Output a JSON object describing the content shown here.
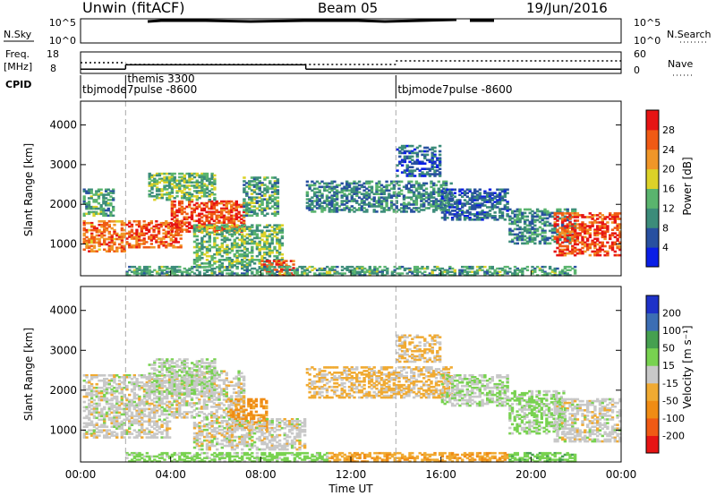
{
  "header": {
    "station": "Unwin  (fitACF)",
    "beam": "Beam 05",
    "date": "19/Jun/2016"
  },
  "top_panels": {
    "nsky_label": "N.Sky",
    "nsearch_label": "N.Search",
    "noise_ticks_left": [
      "10^5",
      "10^0"
    ],
    "noise_ticks_right": [
      "10^5",
      "10^0"
    ],
    "freq_label": [
      "Freq.",
      "[MHz]"
    ],
    "freq_ticks": [
      "18",
      "8"
    ],
    "nave_label": "Nave",
    "nave_ticks": [
      "60",
      "0"
    ],
    "cpid_label": "CPID",
    "cpid_segments": [
      {
        "start_hour": 0.0,
        "name": "tbjmode7pulse  -8600"
      },
      {
        "start_hour": 2.0,
        "name": "themis 3300"
      },
      {
        "start_hour": 14.0,
        "name": "tbjmode7pulse  -8600"
      }
    ],
    "freq_line_mhz": [
      {
        "from_hour": 0.0,
        "to_hour": 2.0,
        "value": 10
      },
      {
        "from_hour": 2.0,
        "to_hour": 10.0,
        "value": 12
      },
      {
        "from_hour": 10.0,
        "to_hour": 24.0,
        "value": 10
      }
    ],
    "nave_line": [
      {
        "from_hour": 0.0,
        "to_hour": 2.0,
        "value": 30
      },
      {
        "from_hour": 2.0,
        "to_hour": 14.0,
        "value": 25
      },
      {
        "from_hour": 14.0,
        "to_hour": 24.0,
        "value": 35
      }
    ]
  },
  "x_axis": {
    "label": "Time UT",
    "ticks": [
      "00:00",
      "04:00",
      "08:00",
      "12:00",
      "16:00",
      "20:00",
      "00:00"
    ]
  },
  "colors": {
    "power": [
      "#0a1ee6",
      "#2850a0",
      "#3c8c7a",
      "#5ab46e",
      "#dcd228",
      "#f09628",
      "#f05a14",
      "#e61414"
    ],
    "velocity": [
      "#e61414",
      "#f05a14",
      "#f08c14",
      "#f0aa32",
      "#c8c8c8",
      "#78d250",
      "#46a050",
      "#3c6eb4",
      "#1e32c8"
    ],
    "marker_line": "#aaaaaa"
  },
  "chart_data": [
    {
      "type": "heatmap",
      "title": "",
      "xlabel": "",
      "ylabel": "Slant Range [km]",
      "xlim": [
        0,
        24
      ],
      "ylim": [
        200,
        4600
      ],
      "yticks": [
        "1000",
        "2000",
        "3000",
        "4000"
      ],
      "colorbar": {
        "label": "Power [dB]",
        "ticks": [
          "4",
          "8",
          "12",
          "16",
          "20",
          "24",
          "28"
        ],
        "range": [
          0,
          32
        ]
      },
      "regions": [
        {
          "hours": [
            0.1,
            2.0
          ],
          "range_km": [
            800,
            1600
          ],
          "level": 24
        },
        {
          "hours": [
            0.1,
            1.5
          ],
          "range_km": [
            1700,
            2400
          ],
          "level": 12
        },
        {
          "hours": [
            2.0,
            4.5
          ],
          "range_km": [
            900,
            1600
          ],
          "level": 26
        },
        {
          "hours": [
            4.0,
            7.3
          ],
          "range_km": [
            1300,
            2100
          ],
          "level": 27
        },
        {
          "hours": [
            3.0,
            6.0
          ],
          "range_km": [
            2100,
            2800
          ],
          "level": 14
        },
        {
          "hours": [
            5.0,
            9.0
          ],
          "range_km": [
            400,
            1500
          ],
          "level": 14
        },
        {
          "hours": [
            8.0,
            9.5
          ],
          "range_km": [
            200,
            600
          ],
          "level": 27
        },
        {
          "hours": [
            7.2,
            8.8
          ],
          "range_km": [
            1700,
            2700
          ],
          "level": 12
        },
        {
          "hours": [
            10.0,
            16.5
          ],
          "range_km": [
            1800,
            2600
          ],
          "level": 10
        },
        {
          "hours": [
            14.0,
            16.0
          ],
          "range_km": [
            2700,
            3500
          ],
          "level": 7
        },
        {
          "hours": [
            16.0,
            19.0
          ],
          "range_km": [
            1600,
            2400
          ],
          "level": 7
        },
        {
          "hours": [
            19.0,
            22.0
          ],
          "range_km": [
            1000,
            1900
          ],
          "level": 10
        },
        {
          "hours": [
            21.0,
            24.0
          ],
          "range_km": [
            700,
            1800
          ],
          "level": 27
        },
        {
          "hours": [
            2.0,
            22.0
          ],
          "range_km": [
            200,
            450
          ],
          "level": 12
        }
      ]
    },
    {
      "type": "heatmap",
      "title": "",
      "xlabel": "Time UT",
      "ylabel": "Slant Range [km]",
      "xlim": [
        0,
        24
      ],
      "ylim": [
        200,
        4600
      ],
      "yticks": [
        "1000",
        "2000",
        "3000",
        "4000"
      ],
      "colorbar": {
        "label": "Velocity [m s⁻¹]",
        "ticks": [
          "-200",
          "-100",
          "-50",
          "-15",
          "15",
          "50",
          "100",
          "200"
        ],
        "range": [
          -250,
          250
        ]
      },
      "regions": [
        {
          "hours": [
            0.1,
            4.0
          ],
          "range_km": [
            800,
            2400
          ],
          "level": 0
        },
        {
          "hours": [
            4.0,
            7.3
          ],
          "range_km": [
            1300,
            2500
          ],
          "level": 0
        },
        {
          "hours": [
            3.0,
            6.0
          ],
          "range_km": [
            1900,
            2800
          ],
          "level": 10
        },
        {
          "hours": [
            6.5,
            8.3
          ],
          "range_km": [
            1000,
            1800
          ],
          "level": -60
        },
        {
          "hours": [
            5.0,
            10.0
          ],
          "range_km": [
            500,
            1300
          ],
          "level": 0
        },
        {
          "hours": [
            10.0,
            16.5
          ],
          "range_km": [
            1800,
            2600
          ],
          "level": -20
        },
        {
          "hours": [
            14.0,
            16.0
          ],
          "range_km": [
            2700,
            3400
          ],
          "level": -20
        },
        {
          "hours": [
            16.0,
            19.0
          ],
          "range_km": [
            1600,
            2400
          ],
          "level": 10
        },
        {
          "hours": [
            19.0,
            21.5
          ],
          "range_km": [
            900,
            2000
          ],
          "level": 20
        },
        {
          "hours": [
            21.0,
            24.0
          ],
          "range_km": [
            700,
            1800
          ],
          "level": 0
        },
        {
          "hours": [
            2.0,
            11.0
          ],
          "range_km": [
            200,
            450
          ],
          "level": 30
        },
        {
          "hours": [
            11.0,
            19.0
          ],
          "range_km": [
            200,
            450
          ],
          "level": -40
        },
        {
          "hours": [
            19.0,
            22.0
          ],
          "range_km": [
            200,
            450
          ],
          "level": 40
        }
      ]
    }
  ]
}
